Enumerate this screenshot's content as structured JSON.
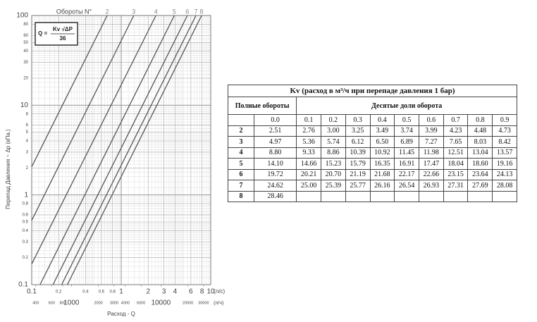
{
  "chart_data": {
    "type": "line",
    "log_scale": true,
    "grid": true,
    "title": "Обороты N°",
    "ylabel": "Перепад Давления   ~ Δp (кПа.)",
    "xlabel": "Расход -  Q",
    "x_unit": "(л/с)",
    "x2_unit": "(л/ч)",
    "annotation": {
      "lhs": "Q =",
      "numerator": "Kv √ΔP",
      "denominator": "36"
    },
    "xlim": [
      0.1,
      10
    ],
    "x2lim": [
      360,
      36000
    ],
    "ylim": [
      0.1,
      100
    ],
    "xticks": [
      0.1,
      0.2,
      0.4,
      0.6,
      0.8,
      1,
      2,
      3,
      4,
      6,
      8,
      10
    ],
    "x2ticks": [
      400,
      600,
      800,
      1000,
      2000,
      3000,
      4000,
      6000,
      10000,
      20000,
      30000
    ],
    "yticks": [
      0.1,
      0.2,
      0.3,
      0.4,
      0.5,
      0.6,
      0.8,
      1,
      2,
      3,
      4,
      5,
      6,
      8,
      10,
      20,
      30,
      40,
      50,
      60,
      80,
      100
    ],
    "series": [
      {
        "name": "2",
        "color": "#555555",
        "x": [
          0.1,
          0.697
        ],
        "values": [
          2.06,
          100
        ]
      },
      {
        "name": "3",
        "color": "#555555",
        "x": [
          0.1,
          1.38
        ],
        "values": [
          0.52,
          100
        ]
      },
      {
        "name": "4",
        "color": "#555555",
        "x": [
          0.1,
          2.44
        ],
        "values": [
          0.17,
          100
        ]
      },
      {
        "name": "5",
        "color": "#555555",
        "x": [
          0.124,
          3.92
        ],
        "values": [
          0.1,
          100
        ]
      },
      {
        "name": "6",
        "color": "#555555",
        "x": [
          0.173,
          5.48
        ],
        "values": [
          0.1,
          100
        ]
      },
      {
        "name": "7",
        "color": "#555555",
        "x": [
          0.216,
          6.84
        ],
        "values": [
          0.1,
          100
        ]
      },
      {
        "name": "8",
        "color": "#555555",
        "x": [
          0.25,
          7.91
        ],
        "values": [
          0.1,
          100
        ]
      }
    ]
  },
  "table": {
    "title": "Kv (расход в м³/ч при перепаде давления 1 бар)",
    "row_header": "Полные обороты",
    "col_group_header": "Десятые доли оборота",
    "columns": [
      "0.0",
      "0.1",
      "0.2",
      "0.3",
      "0.4",
      "0.5",
      "0.6",
      "0.7",
      "0.8",
      "0.9"
    ],
    "rows": [
      {
        "label": "2",
        "cells": [
          "2.51",
          "2.76",
          "3.00",
          "3.25",
          "3.49",
          "3.74",
          "3.99",
          "4.23",
          "4.48",
          "4.73"
        ]
      },
      {
        "label": "3",
        "cells": [
          "4.97",
          "5.36",
          "5.74",
          "6.12",
          "6.50",
          "6.89",
          "7.27",
          "7.65",
          "8.03",
          "8.42"
        ]
      },
      {
        "label": "4",
        "cells": [
          "8.80",
          "9.33",
          "8.86",
          "10.39",
          "10.92",
          "11.45",
          "11.98",
          "12.51",
          "13.04",
          "13.57"
        ]
      },
      {
        "label": "5",
        "cells": [
          "14.10",
          "14.66",
          "15.23",
          "15.79",
          "16.35",
          "16.91",
          "17.47",
          "18.04",
          "18.60",
          "19.16"
        ]
      },
      {
        "label": "6",
        "cells": [
          "19.72",
          "20.21",
          "20.70",
          "21.19",
          "21.68",
          "22.17",
          "22.66",
          "23.15",
          "23.64",
          "24.13"
        ]
      },
      {
        "label": "7",
        "cells": [
          "24.62",
          "25.00",
          "25.39",
          "25.77",
          "26.16",
          "26.54",
          "26.93",
          "27.31",
          "27.69",
          "28.08"
        ]
      },
      {
        "label": "8",
        "cells": [
          "28.46"
        ]
      }
    ]
  }
}
